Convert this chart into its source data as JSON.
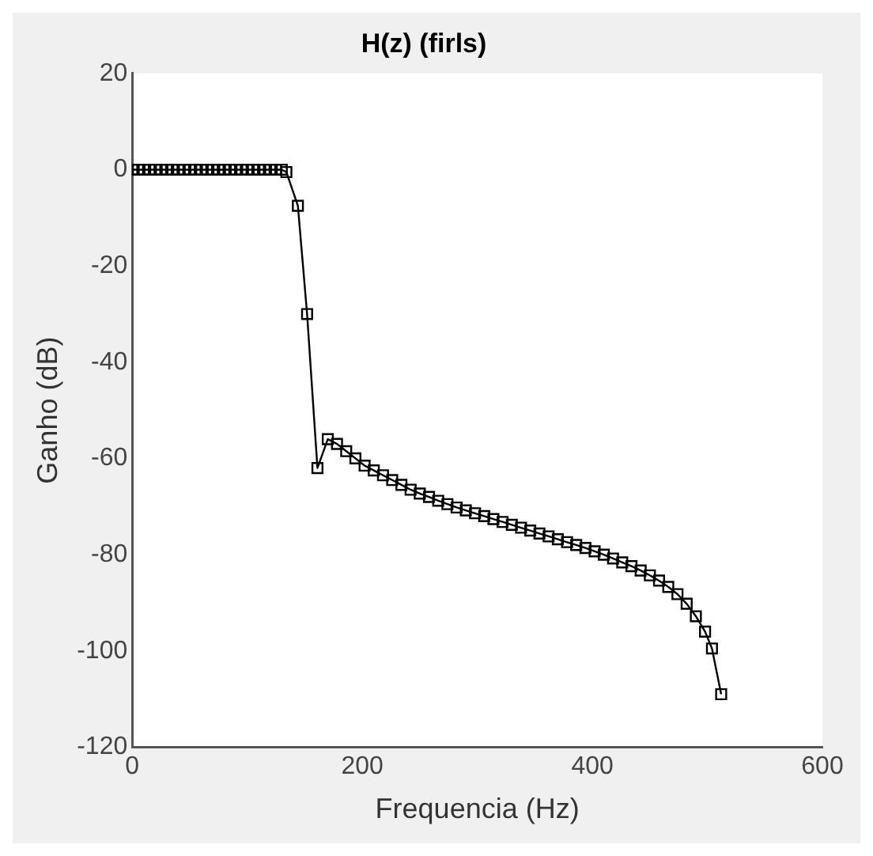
{
  "chart_data": {
    "type": "line",
    "title": "H(z) (firls)",
    "xlabel": "Frequencia (Hz)",
    "ylabel": "Ganho (dB)",
    "x": [
      0,
      5,
      10,
      15,
      20,
      25,
      30,
      35,
      40,
      45,
      50,
      55,
      60,
      65,
      70,
      75,
      80,
      85,
      90,
      95,
      100,
      105,
      110,
      115,
      120,
      125,
      130,
      134,
      144,
      152,
      161,
      170,
      178,
      186,
      194,
      202,
      210,
      218,
      226,
      234,
      242,
      250,
      258,
      266,
      274,
      282,
      290,
      298,
      306,
      314,
      322,
      330,
      338,
      346,
      354,
      362,
      370,
      378,
      386,
      394,
      402,
      410,
      418,
      426,
      434,
      442,
      450,
      458,
      466,
      474,
      482,
      490,
      498,
      504,
      512
    ],
    "series": [
      {
        "color": "#000000",
        "values": [
          0,
          0,
          0,
          0,
          0,
          0,
          0,
          0,
          0,
          0,
          0,
          0,
          0,
          0,
          0,
          0,
          0,
          0,
          0,
          0,
          0,
          0,
          0,
          0,
          0,
          0,
          0,
          -0.5,
          -7.5,
          -30,
          -62,
          -56,
          -57,
          -58.5,
          -60,
          -61.5,
          -62.5,
          -63.5,
          -64.5,
          -65.5,
          -66.5,
          -67.3,
          -68,
          -68.8,
          -69.5,
          -70.2,
          -70.8,
          -71.4,
          -72,
          -72.6,
          -73.2,
          -73.8,
          -74.4,
          -75,
          -75.6,
          -76.2,
          -76.8,
          -77.4,
          -78,
          -78.6,
          -79.3,
          -80,
          -80.8,
          -81.6,
          -82.4,
          -83.3,
          -84.3,
          -85.4,
          -86.7,
          -88.2,
          -90.2,
          -92.8,
          -96,
          -99.5,
          -109
        ]
      }
    ],
    "xlim": [
      0,
      600
    ],
    "ylim": [
      -120,
      20
    ],
    "xticks": [
      0,
      200,
      400,
      600
    ],
    "yticks": [
      -120,
      -100,
      -80,
      -60,
      -40,
      -20,
      0,
      20
    ],
    "marker": "square",
    "line_style": "solid",
    "grid": false,
    "legend": false
  }
}
